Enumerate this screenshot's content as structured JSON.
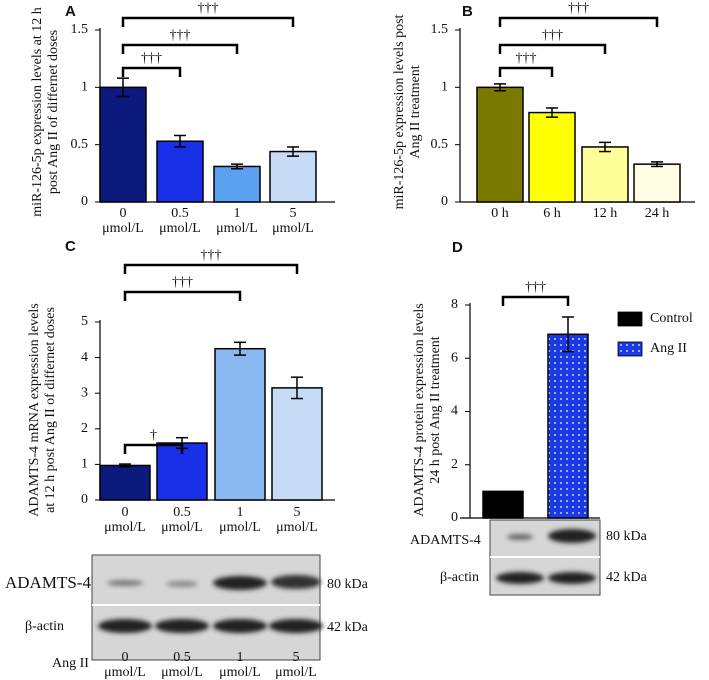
{
  "chart_data": [
    {
      "type": "bar",
      "panel": "A",
      "ylabel": "miR-126-5p expression levels at 12 h post Ang II of differnet doses",
      "categories": [
        "0 μmol/L",
        "0.5 μmol/L",
        "1 μmol/L",
        "5 μmol/L"
      ],
      "values": [
        1.0,
        0.53,
        0.31,
        0.44
      ],
      "errors": [
        0.08,
        0.05,
        0.02,
        0.04
      ],
      "colors": [
        "#0b1a7c",
        "#1a30e8",
        "#5aa0f0",
        "#c6dbf5"
      ],
      "ylim": [
        0,
        1.5
      ],
      "yticks": [
        0,
        0.5,
        1,
        1.5
      ],
      "significance": [
        {
          "label": "†††",
          "groups": [
            0,
            1
          ]
        },
        {
          "label": "†††",
          "groups": [
            0,
            2
          ]
        },
        {
          "label": "†††",
          "groups": [
            0,
            3
          ]
        }
      ]
    },
    {
      "type": "bar",
      "panel": "B",
      "ylabel": "miR-126-5p expression levels post Ang II treatment",
      "categories": [
        "0 h",
        "6 h",
        "12 h",
        "24 h"
      ],
      "values": [
        1.0,
        0.78,
        0.48,
        0.33
      ],
      "errors": [
        0.03,
        0.04,
        0.04,
        0.02
      ],
      "colors": [
        "#7a7a00",
        "#ffff00",
        "#ffff9a",
        "#fffde2"
      ],
      "ylim": [
        0,
        1.5
      ],
      "yticks": [
        0,
        0.5,
        1,
        1.5
      ],
      "significance": [
        {
          "label": "†††",
          "groups": [
            0,
            1
          ]
        },
        {
          "label": "†††",
          "groups": [
            0,
            2
          ]
        },
        {
          "label": "†††",
          "groups": [
            0,
            3
          ]
        }
      ]
    },
    {
      "type": "bar",
      "panel": "C",
      "ylabel": "ADAMTS-4 mRNA expression levels at 12 h post Ang II of differnet doses",
      "categories": [
        "0 μmol/L",
        "0.5 μmol/L",
        "1 μmol/L",
        "5 μmol/L"
      ],
      "values": [
        0.97,
        1.6,
        4.25,
        3.15
      ],
      "errors": [
        0.04,
        0.15,
        0.18,
        0.3
      ],
      "colors": [
        "#0b1a7c",
        "#1a30e8",
        "#8ab8f0",
        "#c6dbf5"
      ],
      "ylim": [
        0,
        5
      ],
      "yticks": [
        0,
        1,
        2,
        3,
        4,
        5
      ],
      "significance": [
        {
          "label": "†",
          "groups": [
            0,
            1
          ]
        },
        {
          "label": "†††",
          "groups": [
            0,
            2
          ]
        },
        {
          "label": "†††",
          "groups": [
            0,
            3
          ]
        }
      ]
    },
    {
      "type": "grouped-bar",
      "panel": "D",
      "ylabel": "ADAMTS-4 protein expression levels 24 h post Ang II treatment",
      "series": [
        {
          "name": "Control",
          "color": "#000000",
          "values": [
            1
          ]
        },
        {
          "name": "Ang II",
          "color": "#1a3ae6",
          "values": [
            6.9
          ],
          "errors": [
            0.65
          ]
        }
      ],
      "ylim": [
        0,
        8
      ],
      "yticks": [
        0,
        2,
        4,
        6,
        8
      ],
      "significance": [
        {
          "label": "†††",
          "groups": [
            0,
            1
          ]
        }
      ]
    }
  ],
  "blots": [
    {
      "target": "ADAMTS-4",
      "control": "β-actin",
      "target_size": "80 kDa",
      "control_size": "42 kDa",
      "treatment": "Ang II",
      "lanes": [
        "0 μmol/L",
        "0.5 μmol/L",
        "1 μmol/L",
        "5 μmol/L"
      ]
    },
    {
      "target": "ADAMTS-4",
      "control": "β-actin",
      "target_size": "80 kDa",
      "control_size": "42 kDa"
    }
  ]
}
